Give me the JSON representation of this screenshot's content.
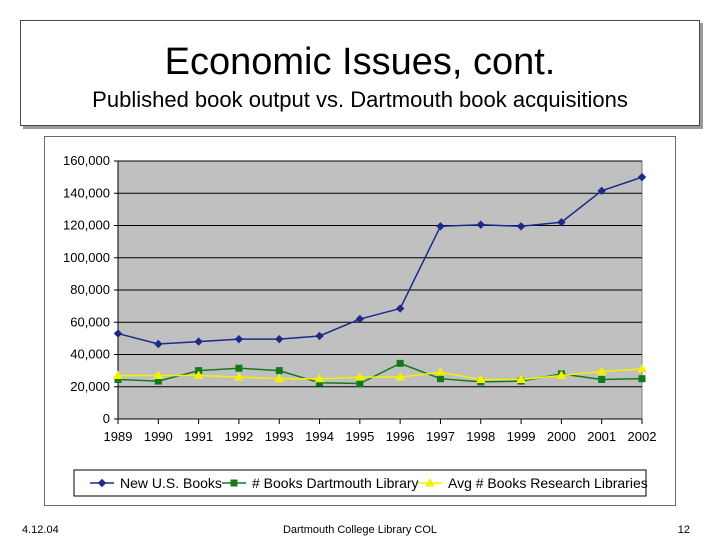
{
  "slide": {
    "title": "Economic Issues, cont.",
    "subtitle": "Published book output vs. Dartmouth book acquisitions",
    "footer_left": "4.12.04",
    "footer_center": "Dartmouth College Library COL",
    "footer_right": "12"
  },
  "chart_data": {
    "type": "line",
    "title": "",
    "xlabel": "",
    "ylabel": "",
    "categories": [
      "1989",
      "1990",
      "1991",
      "1992",
      "1993",
      "1994",
      "1995",
      "1996",
      "1997",
      "1998",
      "1999",
      "2000",
      "2001",
      "2002"
    ],
    "ylim": [
      0,
      160000
    ],
    "yticks": [
      0,
      20000,
      40000,
      60000,
      80000,
      100000,
      120000,
      140000,
      160000
    ],
    "ytick_labels": [
      "0",
      "20,000",
      "40,000",
      "60,000",
      "80,000",
      "100,000",
      "120,000",
      "140,000",
      "160,000"
    ],
    "grid": true,
    "legend_position": "bottom",
    "plot_background": "#c0c0c0",
    "series": [
      {
        "name": "New U.S. Books",
        "color": "#1c2a8a",
        "marker": "diamond",
        "values": [
          53000,
          46500,
          48000,
          49500,
          49500,
          51500,
          62000,
          68500,
          119500,
          120500,
          119500,
          122000,
          141500,
          150000
        ]
      },
      {
        "name": "# Books Dartmouth Library",
        "color": "#137a1c",
        "marker": "square",
        "values": [
          24500,
          23500,
          30000,
          31500,
          30000,
          22500,
          22000,
          34500,
          25000,
          23000,
          23500,
          28000,
          24500,
          25000
        ]
      },
      {
        "name": "Avg # Books Research Libraries",
        "color": "#f2f200",
        "marker": "triangle",
        "values": [
          27000,
          27000,
          27000,
          26000,
          25000,
          25000,
          26000,
          26000,
          29000,
          24500,
          24500,
          27000,
          29500,
          31000
        ]
      }
    ]
  }
}
